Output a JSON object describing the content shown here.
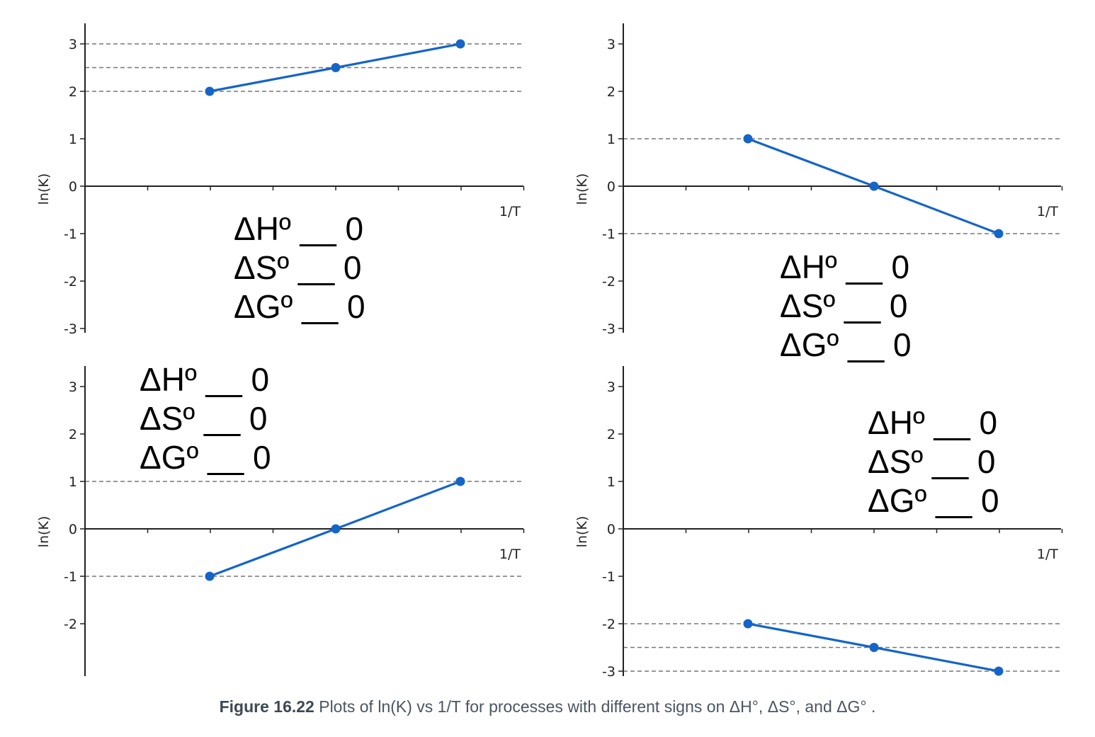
{
  "figure": {
    "caption_label": "Figure 16.22",
    "caption_text": " Plots of ln(K) vs 1/T for processes with different signs on ΔH°, ΔS°, and ΔG° ."
  },
  "series_color": "#1565c8",
  "chart_data": [
    {
      "type": "line",
      "ylabel": "ln(K)",
      "xlabel": "1/T",
      "yticks": [
        "3",
        "2",
        "1",
        "0",
        "-1",
        "-2",
        "-3"
      ],
      "ylim": [
        -3,
        3
      ],
      "series": [
        {
          "x": [
            1,
            2,
            3
          ],
          "y": [
            2,
            2.5,
            3
          ]
        }
      ],
      "reference_lines": [
        3,
        2.5,
        2
      ],
      "annotation": [
        "ΔHº __ 0",
        "ΔSº __ 0",
        "ΔGº __ 0"
      ]
    },
    {
      "type": "line",
      "ylabel": "ln(K)",
      "xlabel": "1/T",
      "yticks": [
        "3",
        "2",
        "1",
        "0",
        "-1",
        "-2",
        "-3"
      ],
      "ylim": [
        -3,
        3
      ],
      "series": [
        {
          "x": [
            1,
            2,
            3
          ],
          "y": [
            1,
            0,
            -1
          ]
        }
      ],
      "reference_lines": [
        1,
        -1
      ],
      "annotation": [
        "ΔHº __ 0",
        "ΔSº __ 0",
        "ΔGº __ 0"
      ]
    },
    {
      "type": "line",
      "ylabel": "ln(K)",
      "xlabel": "1/T",
      "yticks": [
        "3",
        "2",
        "1",
        "0",
        "-1",
        "-2"
      ],
      "ylim": [
        -3,
        3
      ],
      "series": [
        {
          "x": [
            1,
            2,
            3
          ],
          "y": [
            -1,
            0,
            1
          ]
        }
      ],
      "reference_lines": [
        1,
        -1
      ],
      "annotation": [
        "ΔHº __ 0",
        "ΔSº __ 0",
        "ΔGº __ 0"
      ]
    },
    {
      "type": "line",
      "ylabel": "ln(K)",
      "xlabel": "1/T",
      "yticks": [
        "3",
        "2",
        "1",
        "0",
        "-1",
        "-2",
        "-3"
      ],
      "ylim": [
        -3,
        3
      ],
      "series": [
        {
          "x": [
            1,
            2,
            3
          ],
          "y": [
            -2,
            -2.5,
            -3
          ]
        }
      ],
      "reference_lines": [
        -2,
        -2.5,
        -3
      ],
      "annotation": [
        "ΔHº __ 0",
        "ΔSº __ 0",
        "ΔGº __ 0"
      ]
    }
  ]
}
